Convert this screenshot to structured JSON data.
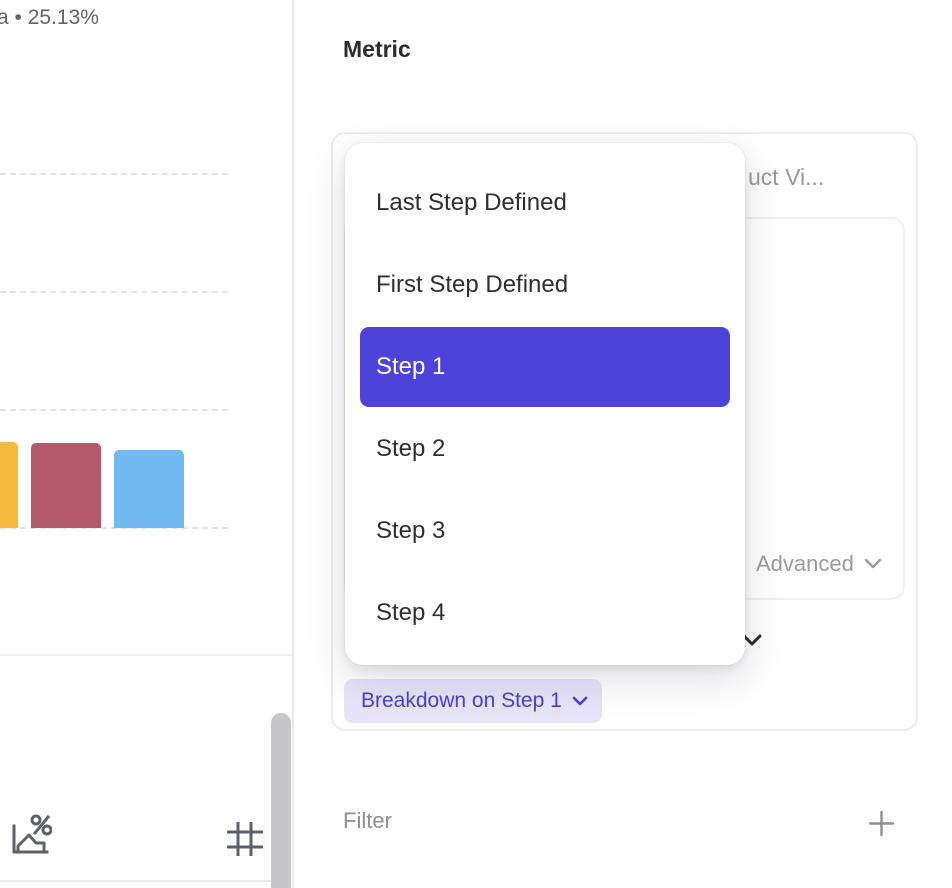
{
  "left_panel": {
    "legend_text": "a • 25.13%",
    "chart": {
      "type": "bar",
      "bars": [
        {
          "name": "bar-1",
          "color": "#f6b93f"
        },
        {
          "name": "bar-2",
          "color": "#b25a6c"
        },
        {
          "name": "bar-3",
          "color": "#71baf2"
        }
      ],
      "gridlines": "dashed"
    },
    "toolbar": {
      "icons": [
        {
          "name": "funnel-percent-icon",
          "glyph": "chart-with-percent"
        },
        {
          "name": "number-grid-icon",
          "glyph": "#"
        }
      ]
    }
  },
  "right_panel": {
    "title": "Metric",
    "metric_card": {
      "event_label_truncated": "uct Vi...",
      "advanced_label": "Advanced",
      "breakdown_chip_label": "Breakdown on Step 1"
    },
    "dropdown": {
      "items": [
        "Last Step Defined",
        "First Step Defined",
        "Step 1",
        "Step 2",
        "Step 3",
        "Step 4"
      ],
      "selected_index": 2,
      "selected_color": "#4e43d9"
    },
    "filter": {
      "label": "Filter",
      "add_icon": "plus"
    }
  },
  "colors": {
    "accent_purple": "#4e43d9",
    "chip_bg": "#e7e4fa",
    "chip_text": "#4a3fd4",
    "bar_orange": "#f6b93f",
    "bar_maroon": "#b25a6c",
    "bar_blue": "#71baf2",
    "icon_gray": "#5d6167",
    "muted_text": "#98989c"
  }
}
